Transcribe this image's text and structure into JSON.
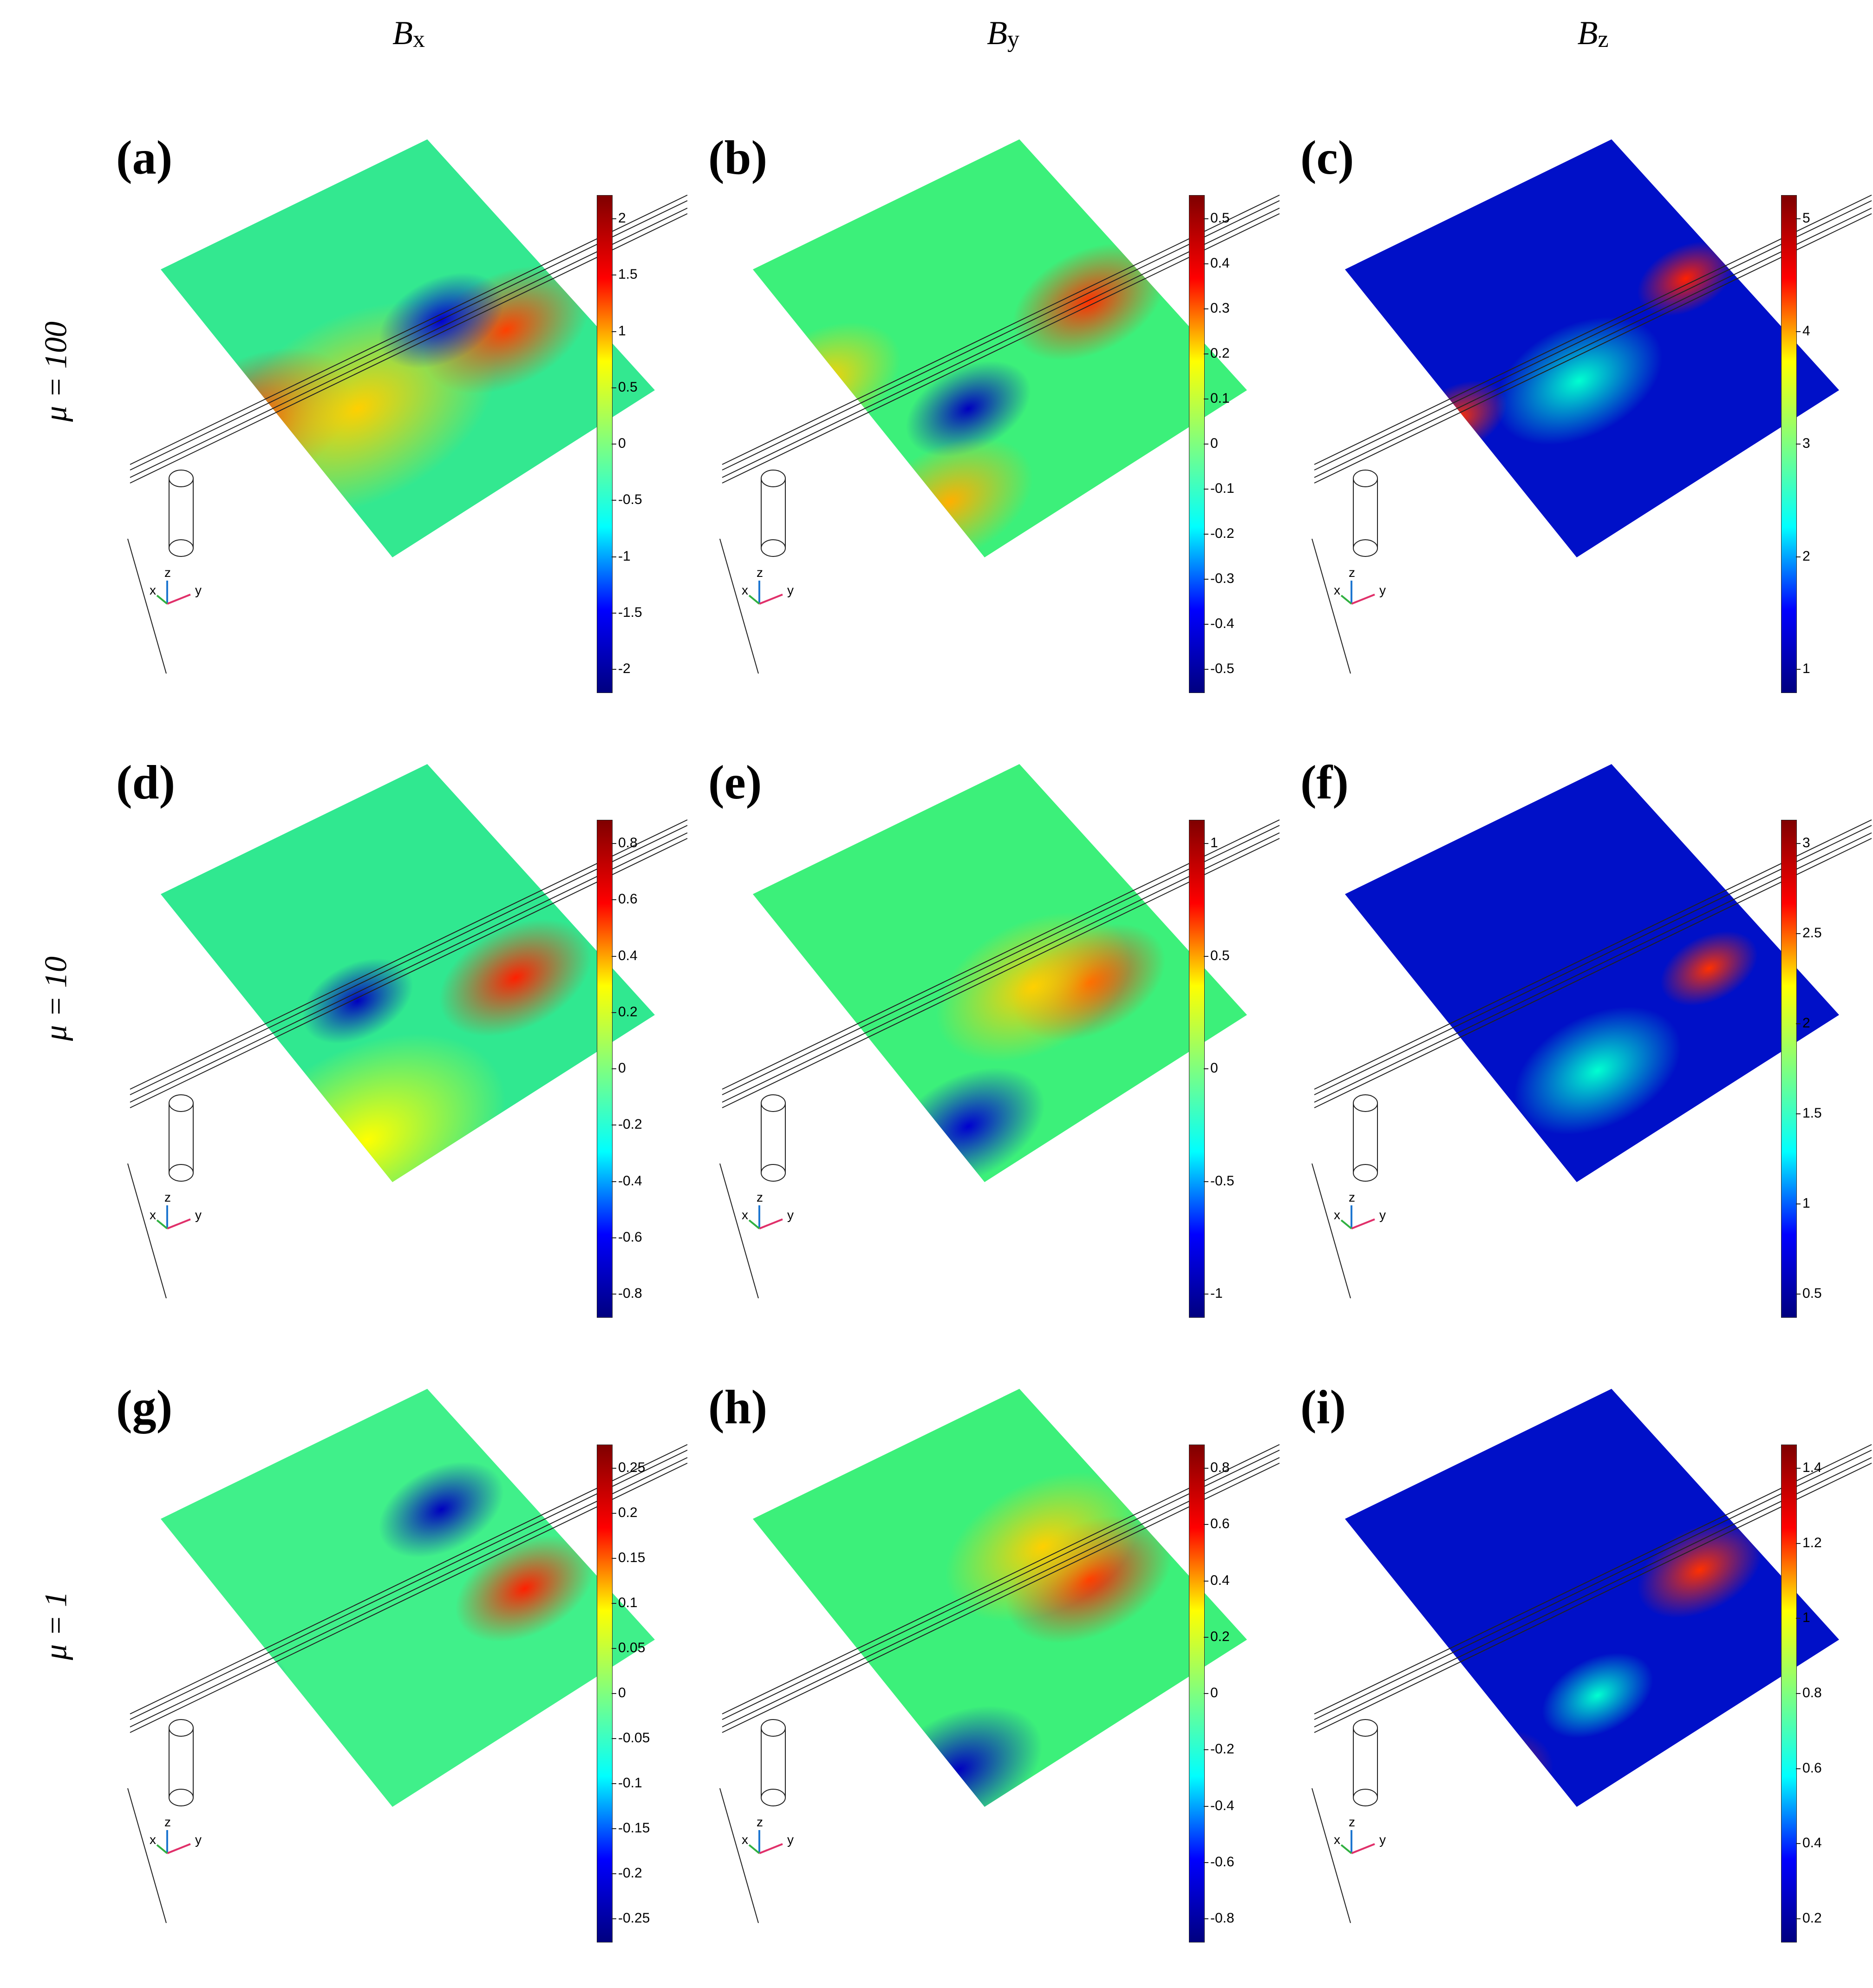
{
  "columns": [
    {
      "symbol": "B",
      "sub": "x"
    },
    {
      "symbol": "B",
      "sub": "y"
    },
    {
      "symbol": "B",
      "sub": "z"
    }
  ],
  "rows": [
    "μ = 100",
    "μ = 10",
    "μ = 1"
  ],
  "axis_labels": {
    "x": "x",
    "y": "y",
    "z": "z"
  },
  "colormap": [
    "#00007f",
    "#0000ff",
    "#00ffff",
    "#7fff7f",
    "#ffff00",
    "#ff0000",
    "#7f0000"
  ],
  "panels": [
    {
      "id": "(a)",
      "field": "Bx",
      "background": "#33e890",
      "ticks": [
        "2",
        "1.5",
        "1",
        "0.5",
        "0",
        "-0.5",
        "-1",
        "-1.5",
        "-2"
      ]
    },
    {
      "id": "(b)",
      "field": "By",
      "background": "#3cf07a",
      "ticks": [
        "0.5",
        "0.4",
        "0.3",
        "0.2",
        "0.1",
        "0",
        "-0.1",
        "-0.2",
        "-0.3",
        "-0.4",
        "-0.5"
      ]
    },
    {
      "id": "(c)",
      "field": "Bz",
      "background": "#0010c8",
      "ticks": [
        "5",
        "4",
        "3",
        "2",
        "1"
      ]
    },
    {
      "id": "(d)",
      "field": "Bx",
      "background": "#30e890",
      "ticks": [
        "0.8",
        "0.6",
        "0.4",
        "0.2",
        "0",
        "-0.2",
        "-0.4",
        "-0.6",
        "-0.8"
      ]
    },
    {
      "id": "(e)",
      "field": "By",
      "background": "#3cf07a",
      "ticks": [
        "1",
        "0.5",
        "0",
        "-0.5",
        "-1"
      ]
    },
    {
      "id": "(f)",
      "field": "Bz",
      "background": "#0010c8",
      "ticks": [
        "3",
        "2.5",
        "2",
        "1.5",
        "1",
        "0.5"
      ]
    },
    {
      "id": "(g)",
      "field": "Bx",
      "background": "#40f08a",
      "ticks": [
        "0.25",
        "0.2",
        "0.15",
        "0.1",
        "0.05",
        "0",
        "-0.05",
        "-0.1",
        "-0.15",
        "-0.2",
        "-0.25"
      ]
    },
    {
      "id": "(h)",
      "field": "By",
      "background": "#3cf07a",
      "ticks": [
        "0.8",
        "0.6",
        "0.4",
        "0.2",
        "0",
        "-0.2",
        "-0.4",
        "-0.6",
        "-0.8"
      ]
    },
    {
      "id": "(i)",
      "field": "Bz",
      "background": "#0010c8",
      "ticks": [
        "1.4",
        "1.2",
        "1",
        "0.8",
        "0.6",
        "0.4",
        "0.2"
      ]
    }
  ]
}
